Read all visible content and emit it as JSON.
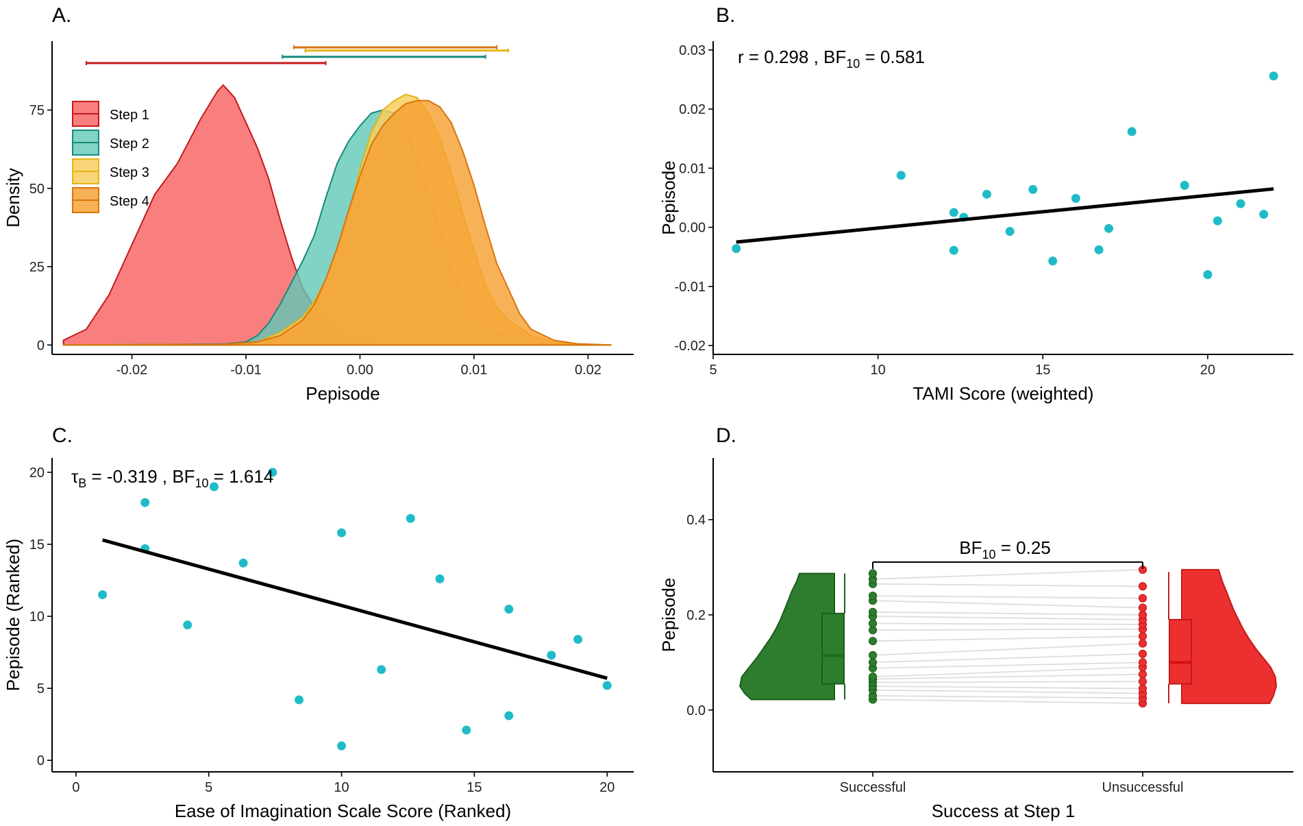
{
  "chart_data": [
    {
      "panel": "A.",
      "type": "area",
      "xlabel": "Pepisode",
      "ylabel": "Density",
      "xlim": [
        -0.027,
        0.024
      ],
      "ylim": [
        -3,
        97
      ],
      "xticks": [
        -0.02,
        -0.01,
        0.0,
        0.01,
        0.02
      ],
      "xtick_labels": [
        "-0.02",
        "-0.01",
        "0.00",
        "0.01",
        "0.02"
      ],
      "yticks": [
        0,
        25,
        50,
        75
      ],
      "ytick_labels": [
        "0",
        "25",
        "50",
        "75"
      ],
      "legend_position": "left",
      "series": [
        {
          "name": "Step 1",
          "fill": "#f87474",
          "stroke": "#c41a1a",
          "fill_opacity": 0.92,
          "points": [
            [
              -0.026,
              1.5
            ],
            [
              -0.024,
              5
            ],
            [
              -0.022,
              16
            ],
            [
              -0.02,
              32
            ],
            [
              -0.018,
              48
            ],
            [
              -0.016,
              58
            ],
            [
              -0.014,
              72
            ],
            [
              -0.0125,
              81
            ],
            [
              -0.012,
              83
            ],
            [
              -0.011,
              79
            ],
            [
              -0.01,
              71
            ],
            [
              -0.009,
              63
            ],
            [
              -0.008,
              53
            ],
            [
              -0.007,
              40
            ],
            [
              -0.006,
              28
            ],
            [
              -0.005,
              18
            ],
            [
              -0.004,
              12
            ],
            [
              -0.003,
              8
            ],
            [
              -0.002,
              5
            ],
            [
              -0.001,
              3
            ],
            [
              0.0,
              2
            ],
            [
              0.002,
              0.5
            ],
            [
              0.004,
              0.1
            ],
            [
              0.022,
              0
            ]
          ],
          "interval": [
            -0.024,
            -0.003
          ],
          "interval_level": 90
        },
        {
          "name": "Step 2",
          "fill": "#60c8b7",
          "stroke": "#168a7a",
          "fill_opacity": 0.8,
          "points": [
            [
              -0.026,
              0
            ],
            [
              -0.012,
              0.3
            ],
            [
              -0.01,
              1
            ],
            [
              -0.009,
              3
            ],
            [
              -0.008,
              7
            ],
            [
              -0.007,
              13
            ],
            [
              -0.006,
              20
            ],
            [
              -0.005,
              27
            ],
            [
              -0.004,
              35
            ],
            [
              -0.003,
              47
            ],
            [
              -0.002,
              58
            ],
            [
              -0.001,
              65
            ],
            [
              0.0,
              70
            ],
            [
              0.001,
              74
            ],
            [
              0.002,
              75
            ],
            [
              0.003,
              74
            ],
            [
              0.004,
              69
            ],
            [
              0.005,
              59
            ],
            [
              0.006,
              48
            ],
            [
              0.007,
              36
            ],
            [
              0.008,
              24
            ],
            [
              0.009,
              15
            ],
            [
              0.01,
              9
            ],
            [
              0.012,
              4
            ],
            [
              0.014,
              1.5
            ],
            [
              0.016,
              0.5
            ],
            [
              0.022,
              0
            ]
          ],
          "interval": [
            -0.0068,
            0.011
          ],
          "interval_level": 92
        },
        {
          "name": "Step 3",
          "fill": "#f7ce5e",
          "stroke": "#e6b414",
          "fill_opacity": 0.85,
          "points": [
            [
              -0.026,
              0
            ],
            [
              -0.012,
              0.2
            ],
            [
              -0.009,
              1
            ],
            [
              -0.007,
              4
            ],
            [
              -0.005,
              9
            ],
            [
              -0.004,
              14
            ],
            [
              -0.003,
              21
            ],
            [
              -0.002,
              30
            ],
            [
              -0.001,
              42
            ],
            [
              0.0,
              56
            ],
            [
              0.001,
              68
            ],
            [
              0.002,
              75
            ],
            [
              0.003,
              78
            ],
            [
              0.004,
              80
            ],
            [
              0.005,
              79
            ],
            [
              0.006,
              74
            ],
            [
              0.007,
              66
            ],
            [
              0.008,
              55
            ],
            [
              0.009,
              42
            ],
            [
              0.01,
              30
            ],
            [
              0.011,
              19
            ],
            [
              0.012,
              12
            ],
            [
              0.013,
              8
            ],
            [
              0.015,
              3
            ],
            [
              0.017,
              0.8
            ],
            [
              0.019,
              0.2
            ],
            [
              0.022,
              0
            ]
          ],
          "interval": [
            -0.0048,
            0.013
          ],
          "interval_level": 94
        },
        {
          "name": "Step 4",
          "fill": "#f5a032",
          "stroke": "#d9740b",
          "fill_opacity": 0.82,
          "points": [
            [
              -0.026,
              0
            ],
            [
              -0.012,
              0.2
            ],
            [
              -0.009,
              1
            ],
            [
              -0.007,
              3
            ],
            [
              -0.005,
              8
            ],
            [
              -0.004,
              13
            ],
            [
              -0.003,
              21
            ],
            [
              -0.002,
              31
            ],
            [
              -0.001,
              43
            ],
            [
              0.0,
              54
            ],
            [
              0.001,
              64
            ],
            [
              0.002,
              70
            ],
            [
              0.003,
              74
            ],
            [
              0.004,
              77
            ],
            [
              0.005,
              78
            ],
            [
              0.006,
              78
            ],
            [
              0.007,
              76
            ],
            [
              0.008,
              71
            ],
            [
              0.009,
              62
            ],
            [
              0.01,
              51
            ],
            [
              0.011,
              38
            ],
            [
              0.012,
              26
            ],
            [
              0.013,
              18
            ],
            [
              0.014,
              10
            ],
            [
              0.015,
              5
            ],
            [
              0.017,
              1.5
            ],
            [
              0.019,
              0.4
            ],
            [
              0.022,
              0
            ]
          ],
          "interval": [
            -0.0058,
            0.012
          ],
          "interval_level": 95
        }
      ]
    },
    {
      "panel": "B.",
      "type": "scatter",
      "xlabel": "TAMI Score (weighted)",
      "ylabel": "Pepisode",
      "xlim": [
        5,
        22.6
      ],
      "ylim": [
        -0.0215,
        0.0315
      ],
      "xticks": [
        5,
        10,
        15,
        20
      ],
      "xtick_labels": [
        "5",
        "10",
        "15",
        "20"
      ],
      "yticks": [
        -0.02,
        -0.01,
        0.0,
        0.01,
        0.02,
        0.03
      ],
      "ytick_labels": [
        "-0.02",
        "-0.01",
        "0.00",
        "0.01",
        "0.02",
        "0.03"
      ],
      "point_color": "#1fbcc8",
      "points": [
        [
          5.7,
          -0.0036
        ],
        [
          10.7,
          0.0088
        ],
        [
          12.3,
          0.0025
        ],
        [
          12.3,
          -0.0039
        ],
        [
          12.6,
          0.0017
        ],
        [
          13.3,
          0.0056
        ],
        [
          14.0,
          -0.0007
        ],
        [
          14.7,
          0.0064
        ],
        [
          15.3,
          -0.0057
        ],
        [
          16.0,
          0.0049
        ],
        [
          16.7,
          -0.0038
        ],
        [
          17.0,
          -0.0002
        ],
        [
          17.7,
          0.0162
        ],
        [
          19.3,
          0.0071
        ],
        [
          20.0,
          -0.008
        ],
        [
          20.3,
          0.0011
        ],
        [
          21.0,
          0.004
        ],
        [
          21.7,
          0.0022
        ],
        [
          22.0,
          0.0256
        ]
      ],
      "regression": {
        "x": [
          5.7,
          22.0
        ],
        "y": [
          -0.0025,
          0.0065
        ]
      },
      "annotation": {
        "prefix": "r = 0.298 , BF",
        "sub": "10",
        "suffix": " = 0.581"
      }
    },
    {
      "panel": "C.",
      "type": "scatter",
      "xlabel": "Ease of Imagination Scale Score (Ranked)",
      "ylabel": "Pepisode (Ranked)",
      "xlim": [
        -0.9,
        21
      ],
      "ylim": [
        -0.8,
        21
      ],
      "xticks": [
        0,
        5,
        10,
        15,
        20
      ],
      "xtick_labels": [
        "0",
        "5",
        "10",
        "15",
        "20"
      ],
      "yticks": [
        0,
        5,
        10,
        15,
        20
      ],
      "ytick_labels": [
        "0",
        "5",
        "10",
        "15",
        "20"
      ],
      "point_color": "#1fbcc8",
      "points": [
        [
          1,
          11.5
        ],
        [
          2.6,
          17.9
        ],
        [
          2.6,
          14.7
        ],
        [
          4.2,
          9.4
        ],
        [
          5.2,
          19
        ],
        [
          6.3,
          13.7
        ],
        [
          7.4,
          20
        ],
        [
          8.4,
          4.2
        ],
        [
          10,
          15.8
        ],
        [
          10,
          1
        ],
        [
          11.5,
          6.3
        ],
        [
          12.6,
          16.8
        ],
        [
          13.7,
          12.6
        ],
        [
          14.7,
          2.1
        ],
        [
          16.3,
          10.5
        ],
        [
          16.3,
          3.1
        ],
        [
          17.9,
          7.3
        ],
        [
          18.9,
          8.4
        ],
        [
          20,
          5.2
        ]
      ],
      "regression": {
        "x": [
          1,
          20
        ],
        "y": [
          15.3,
          5.7
        ]
      },
      "annotation": {
        "prefix": "τ",
        "tau_sub": "B",
        "middle": " = -0.319 , BF",
        "sub": "10",
        "suffix": " = 1.614"
      }
    },
    {
      "panel": "D.",
      "type": "raincloud",
      "xlabel": "Success at Step 1",
      "ylabel": "Pepisode",
      "ylim": [
        -0.13,
        0.53
      ],
      "yticks": [
        0.0,
        0.2,
        0.4
      ],
      "ytick_labels": [
        "0.0",
        "0.2",
        "0.4"
      ],
      "categories": [
        "Successful",
        "Unsuccessful"
      ],
      "groups": [
        {
          "name": "Successful",
          "fill": "#2e7d2e",
          "stroke": "#1a5e1a",
          "median_color": "#1a6b1a",
          "box": {
            "q1": 0.055,
            "median": 0.114,
            "q3": 0.203,
            "whisker_low": 0.022,
            "whisker_high": 0.287
          },
          "violin": [
            [
              0.022,
              0.88
            ],
            [
              0.035,
              0.95
            ],
            [
              0.05,
              1.0
            ],
            [
              0.07,
              0.98
            ],
            [
              0.09,
              0.9
            ],
            [
              0.11,
              0.82
            ],
            [
              0.13,
              0.75
            ],
            [
              0.15,
              0.68
            ],
            [
              0.17,
              0.62
            ],
            [
              0.19,
              0.57
            ],
            [
              0.21,
              0.53
            ],
            [
              0.23,
              0.49
            ],
            [
              0.25,
              0.45
            ],
            [
              0.27,
              0.4
            ],
            [
              0.287,
              0.37
            ]
          ],
          "points": [
            0.022,
            0.03,
            0.042,
            0.05,
            0.058,
            0.065,
            0.07,
            0.088,
            0.1,
            0.115,
            0.145,
            0.168,
            0.182,
            0.197,
            0.206,
            0.23,
            0.24,
            0.265,
            0.275,
            0.287
          ]
        },
        {
          "name": "Unsuccessful",
          "fill": "#ec3030",
          "stroke": "#c41a1a",
          "median_color": "#d41010",
          "box": {
            "q1": 0.055,
            "median": 0.1,
            "q3": 0.19,
            "whisker_low": 0.014,
            "whisker_high": 0.29
          },
          "violin": [
            [
              0.014,
              0.93
            ],
            [
              0.03,
              0.97
            ],
            [
              0.05,
              1.0
            ],
            [
              0.07,
              0.99
            ],
            [
              0.09,
              0.94
            ],
            [
              0.11,
              0.86
            ],
            [
              0.13,
              0.78
            ],
            [
              0.15,
              0.71
            ],
            [
              0.17,
              0.65
            ],
            [
              0.19,
              0.6
            ],
            [
              0.21,
              0.55
            ],
            [
              0.23,
              0.51
            ],
            [
              0.25,
              0.47
            ],
            [
              0.27,
              0.43
            ],
            [
              0.295,
              0.39
            ]
          ],
          "points": [
            0.014,
            0.025,
            0.035,
            0.045,
            0.06,
            0.075,
            0.09,
            0.1,
            0.118,
            0.14,
            0.155,
            0.17,
            0.18,
            0.19,
            0.2,
            0.215,
            0.235,
            0.26,
            0.295
          ]
        }
      ],
      "annotation": {
        "prefix": "BF",
        "sub": "10",
        "suffix": " = 0.25"
      }
    }
  ]
}
